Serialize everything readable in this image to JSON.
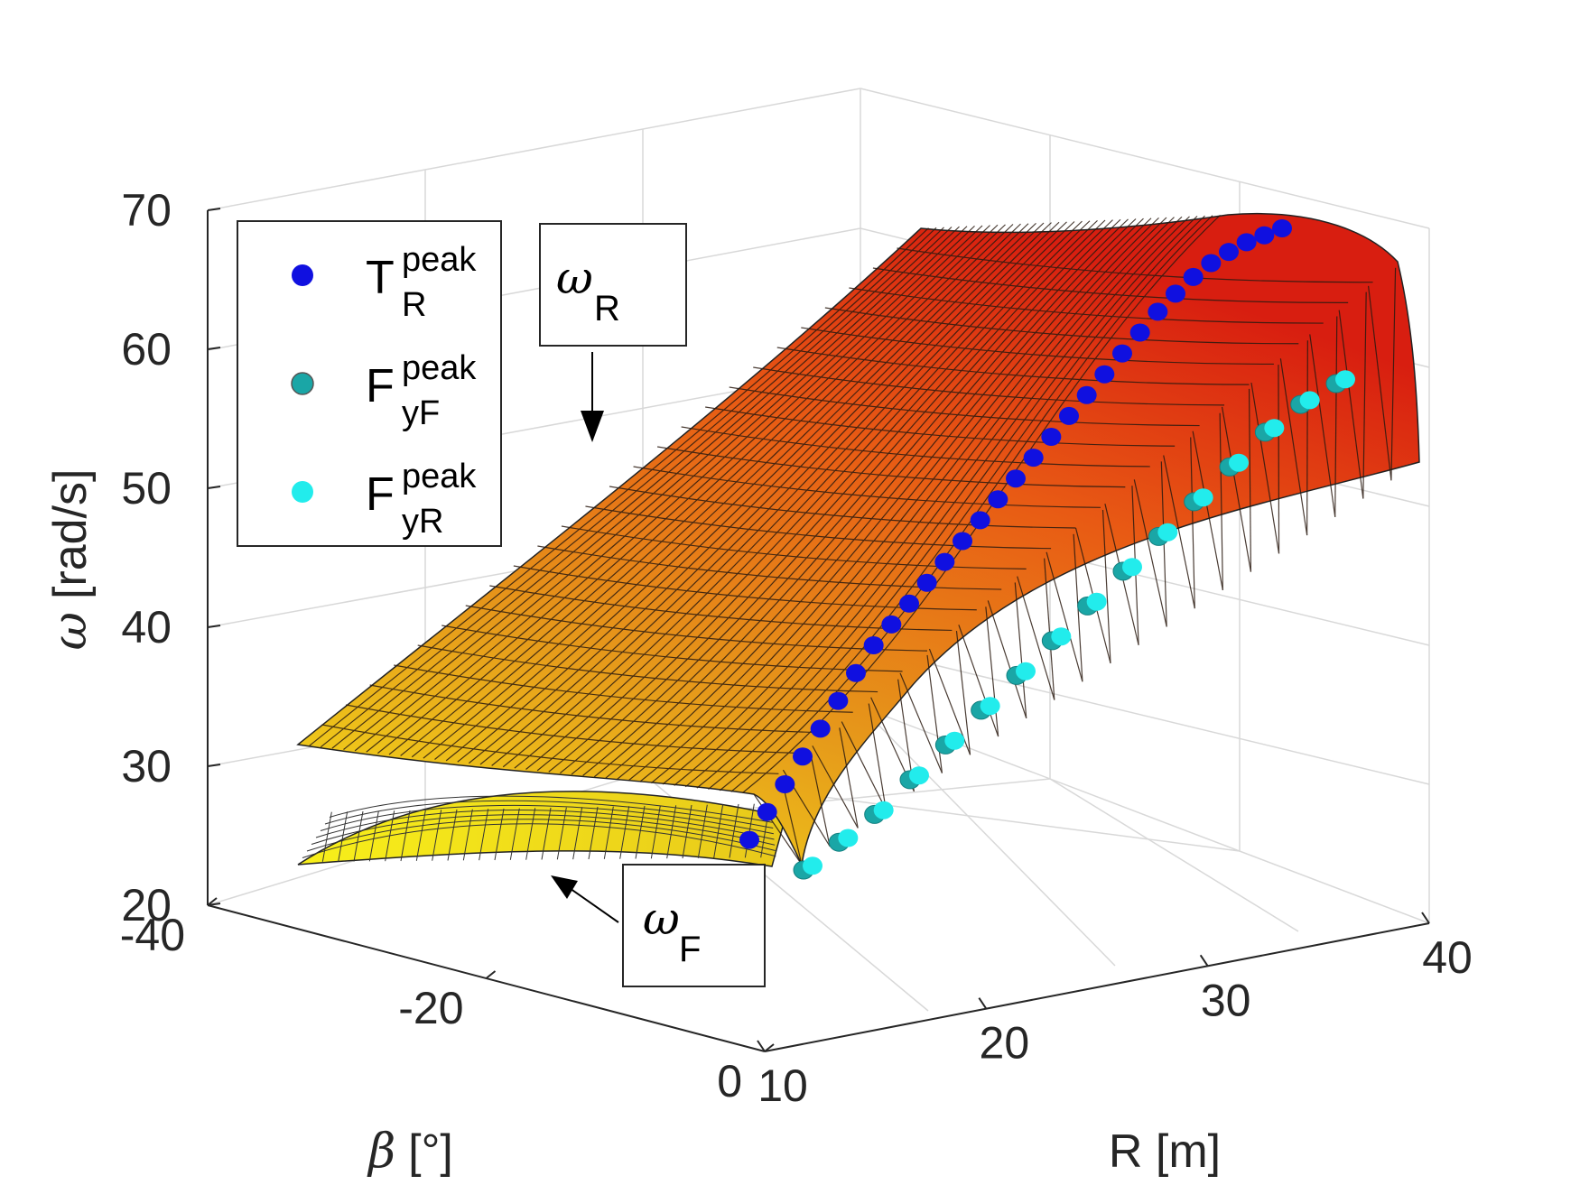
{
  "chart_data": {
    "type": "surface3d",
    "zlabel_symbol": "ω",
    "zlabel_unit": "[rad/s]",
    "xlabel": "R [m]",
    "ylabel_symbol": "β",
    "ylabel_unit": "[°]",
    "zlim": [
      20,
      70
    ],
    "xlim": [
      10,
      40
    ],
    "ylim": [
      -40,
      0
    ],
    "z_ticks": [
      "70",
      "60",
      "50",
      "40",
      "30",
      "20"
    ],
    "x_ticks": [
      "10",
      "20",
      "30",
      "40"
    ],
    "y_ticks": [
      "-40",
      "-20",
      "0"
    ],
    "surfaces": [
      {
        "name": "ω_R",
        "label_symbol": "ω",
        "label_sub": "R"
      },
      {
        "name": "ω_F",
        "label_symbol": "ω",
        "label_sub": "F"
      }
    ],
    "legend": [
      {
        "base": "T",
        "sup": "peak",
        "sub": "R",
        "color": "#1010e0"
      },
      {
        "base": "F",
        "sup": "peak",
        "sub": "yF",
        "color": "#1aa6a6"
      },
      {
        "base": "F",
        "sup": "peak",
        "sub": "yR",
        "color": "#22ecec"
      }
    ],
    "series": [
      {
        "name": "T_R^peak",
        "R": [
          10,
          11,
          12,
          13,
          14,
          15,
          16,
          17,
          18,
          19,
          20,
          21,
          22,
          23,
          24,
          25,
          26,
          27,
          28,
          29,
          30,
          31,
          32,
          33,
          34,
          35,
          36,
          37,
          38,
          39,
          40
        ],
        "omega": [
          26,
          28,
          30,
          32,
          34,
          36,
          38,
          40,
          41.5,
          43,
          44.5,
          46,
          47.5,
          49,
          50.5,
          52,
          53.5,
          55,
          56.5,
          58,
          59.5,
          61,
          62.5,
          64,
          65.3,
          66.5,
          67.5,
          68.3,
          69,
          69.5,
          70
        ]
      },
      {
        "name": "F_yF^peak",
        "R": [
          10,
          12,
          14,
          16,
          18,
          20,
          22,
          24,
          26,
          28,
          30,
          32,
          34,
          36,
          38,
          40
        ],
        "omega": [
          25,
          27,
          29,
          31.5,
          34,
          36.5,
          39,
          41.5,
          44,
          46.5,
          49,
          51.5,
          54,
          56.5,
          58.5,
          60
        ]
      },
      {
        "name": "F_yR^peak",
        "R": [
          10,
          12,
          14,
          16,
          18,
          20,
          22,
          24,
          26,
          28,
          30,
          32,
          34,
          36,
          38,
          40
        ],
        "omega": [
          25.5,
          27.5,
          29.5,
          32,
          34.5,
          37,
          39.5,
          42,
          44.5,
          47,
          49.5,
          52,
          54.5,
          57,
          59,
          60.5
        ]
      }
    ],
    "grid": true,
    "legend_position": "top-left"
  }
}
